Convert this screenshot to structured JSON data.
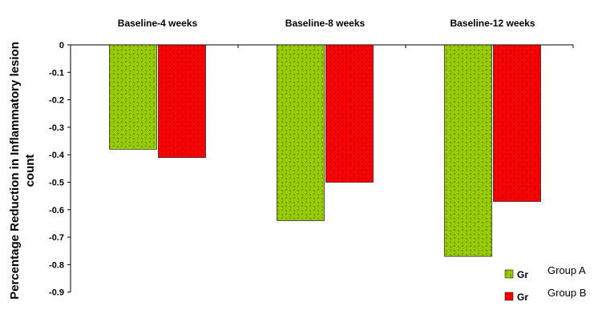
{
  "chart_data": {
    "type": "bar",
    "categories": [
      "Baseline-4 weeks",
      "Baseline-8 weeks",
      "Baseline-12 weeks"
    ],
    "series": [
      {
        "name": "Group A",
        "legend_code": "Gr",
        "color": "#99cc00",
        "values": [
          -0.38,
          -0.64,
          -0.77
        ]
      },
      {
        "name": "Group B",
        "legend_code": "Gr",
        "color": "#ff0000",
        "values": [
          -0.41,
          -0.5,
          -0.57
        ]
      }
    ],
    "ylabel_line1": "Percentage Reduction in Inflammatory lesion",
    "ylabel_line2": "count",
    "ylim": [
      -0.9,
      0
    ],
    "yticks": [
      0,
      -0.1,
      -0.2,
      -0.3,
      -0.4,
      -0.5,
      -0.6,
      -0.7,
      -0.8,
      -0.9
    ],
    "ytick_labels": [
      "0",
      "-0.1",
      "-0.2",
      "-0.3",
      "-0.4",
      "-0.5",
      "-0.6",
      "-0.7",
      "-0.8",
      "-0.9"
    ],
    "category_label_position": "top",
    "legend_position": "bottom-right",
    "grid": false
  }
}
